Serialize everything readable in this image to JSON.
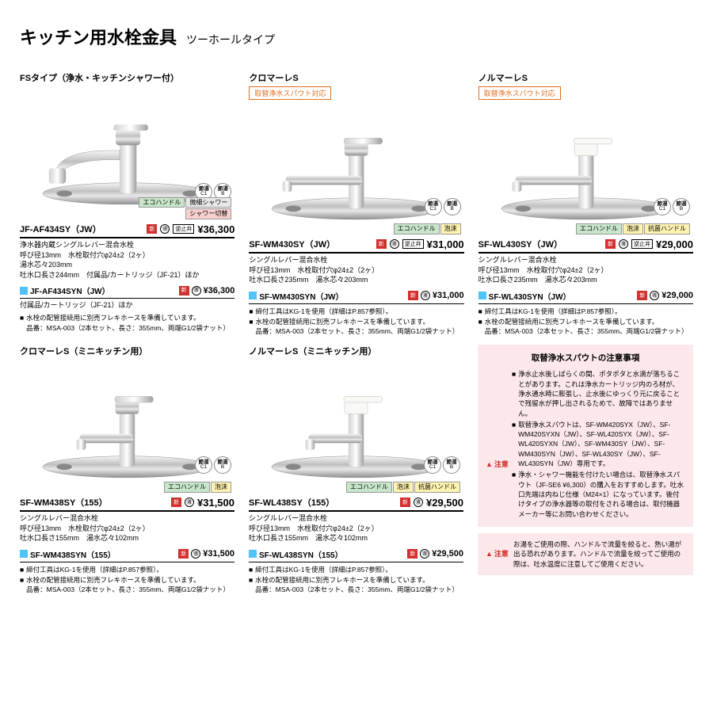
{
  "page": {
    "title": "キッチン用水栓金具",
    "subtitle": "ツーホールタイプ"
  },
  "badges": {
    "c1a": "節湯",
    "c1b": "C1",
    "ba": "節湯",
    "bb": "B"
  },
  "icons": {
    "new": "新",
    "valve": "逆止弁"
  },
  "tags": {
    "eco": "エコハンドル",
    "fine": "微細シャワー",
    "shower": "シャワー切替",
    "foam": "泡沫",
    "anti": "抗菌ハンドル"
  },
  "products": [
    {
      "type": "FSタイプ（浄水・キッチンシャワー付）",
      "orange": "",
      "model": "JF-AF434SY（JW）",
      "price": "¥36,300",
      "desc": "浄水器内蔵シングルレバー混合水栓\n呼び径13mm　水栓取付穴φ24±2（2ヶ）\n湯水芯々203mm\n吐水口長さ244mm　付属品/カートリッジ（JF-21）ほか",
      "sub_model": "JF-AF434SYN（JW）",
      "sub_price": "¥36,300",
      "sub_desc": "付属品/カートリッジ（JF-21）ほか",
      "notes": "水栓の配管接続用に別売フレキホースを準備しています。\n品番：MSA-003（2本セット、長さ：355mm、両端G1/2袋ナット）",
      "tags": [
        "eco",
        "fine",
        "shower"
      ],
      "faucet": "pull"
    },
    {
      "type": "クロマーレS",
      "orange": "取替浄水スパウト対応",
      "model": "SF-WM430SY（JW）",
      "price": "¥31,000",
      "desc": "シングルレバー混合水栓\n呼び径13mm　水栓取付穴φ24±2（2ヶ）\n吐水口長さ235mm　湯水芯々203mm",
      "sub_model": "SF-WM430SYN（JW）",
      "sub_price": "¥31,000",
      "sub_desc": "",
      "notes1": "締付工具はKG-1を使用（詳細はP.857参照）。",
      "notes": "水栓の配管接続用に別売フレキホースを準備しています。\n品番：MSA-003（2本セット、長さ：355mm、両端G1/2袋ナット）",
      "tags": [
        "eco",
        "foam"
      ],
      "faucet": "std"
    },
    {
      "type": "ノルマーレS",
      "orange": "取替浄水スパウト対応",
      "model": "SF-WL430SY（JW）",
      "price": "¥29,000",
      "desc": "シングルレバー混合水栓\n呼び径13mm　水栓取付穴φ24±2（2ヶ）\n吐水口長さ235mm　湯水芯々203mm",
      "sub_model": "SF-WL430SYN（JW）",
      "sub_price": "¥29,000",
      "sub_desc": "",
      "notes1": "締付工具はKG-1を使用（詳細はP.857参照）。",
      "notes": "水栓の配管接続用に別売フレキホースを準備しています。\n品番：MSA-003（2本セット、長さ：355mm、両端G1/2袋ナット）",
      "tags": [
        "eco",
        "foam",
        "anti"
      ],
      "faucet": "white"
    },
    {
      "type": "クロマーレS（ミニキッチン用）",
      "orange": "",
      "model": "SF-WM438SY（155）",
      "price": "¥31,500",
      "desc": "シングルレバー混合水栓\n呼び径13mm　水栓取付穴φ24±2（2ヶ）\n吐水口長さ155mm　湯水芯々102mm",
      "sub_model": "SF-WM438SYN（155）",
      "sub_price": "¥31,500",
      "sub_desc": "",
      "notes1": "締付工具はKG-1を使用（詳細はP.857参照）。",
      "notes": "水栓の配管接続用に別売フレキホースを準備しています。\n品番：MSA-003（2本セット、長さ：355mm、両端G1/2袋ナット）",
      "tags": [
        "eco",
        "foam"
      ],
      "faucet": "std-short"
    },
    {
      "type": "ノルマーレS（ミニキッチン用）",
      "orange": "",
      "model": "SF-WL438SY（155）",
      "price": "¥29,500",
      "desc": "シングルレバー混合水栓\n呼び径13mm　水栓取付穴φ24±2（2ヶ）\n吐水口長さ155mm　湯水芯々102mm",
      "sub_model": "SF-WL438SYN（155）",
      "sub_price": "¥29,500",
      "sub_desc": "",
      "notes1": "締付工具はKG-1を使用（詳細はP.857参照）。",
      "notes": "水栓の配管接続用に別売フレキホースを準備しています。\n品番：MSA-003（2本セット、長さ：355mm、両端G1/2袋ナット）",
      "tags": [
        "eco",
        "foam",
        "anti"
      ],
      "faucet": "white-short"
    }
  ],
  "warning1": {
    "title": "取替浄水スパウトの注意事項",
    "label": "注意",
    "items": [
      "浄水止水後しばらくの間、ポタポタと水滴が落ちることがあります。これは浄水カートリッジ内のろ材が、浄水通水時に膨張し、止水後にゆっくり元に戻ることで残留水が押し出されるためで、故障ではありません。",
      "取替浄水スパウトは、SF-WM420SYX（JW）、SF-WM420SYXN（JW）、SF-WL420SYX（JW）、SF-WL420SYXN（JW）、SF-WM430SY（JW）、SF-WM430SYN（JW）、SF-WL430SY（JW）、SF-WL430SYN（JW）専用です。",
      "浄水・シャワー機能を付けたい場合は、取替浄水スパウト（JF-SE6 ¥6,300）の購入をおすすめします。吐水口先端は内ねじ仕様（M24×1）になっています。後付けタイプの浄水器等の取付をされる場合は、取付機器メーカー等にお問い合わせください。"
    ]
  },
  "warning2": {
    "label": "注意",
    "text": "お湯をご使用の際、ハンドルで流量を絞ると、熱い湯が出る恐れがあります。ハンドルで流量を絞ってご使用の際は、吐水温度に注意してご使用ください。"
  }
}
